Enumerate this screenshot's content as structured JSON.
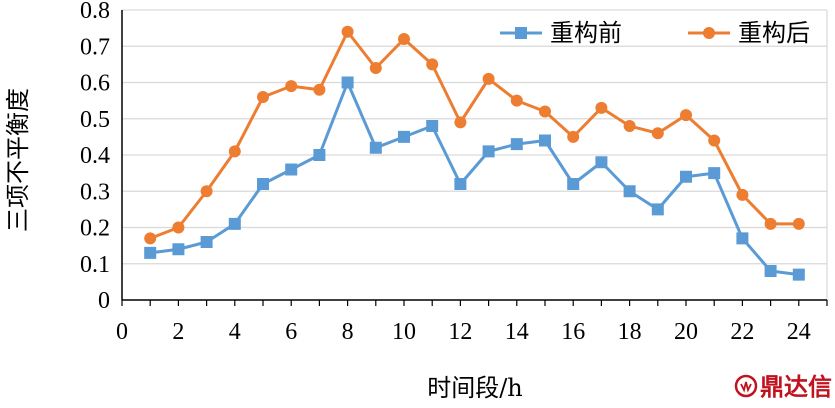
{
  "chart_data": {
    "type": "line",
    "title": "",
    "xlabel": "时间段/h",
    "ylabel": "三项不平衡度",
    "xlim": [
      0,
      25
    ],
    "ylim": [
      0,
      0.8
    ],
    "x_ticks": [
      0,
      2,
      4,
      6,
      8,
      10,
      12,
      14,
      16,
      18,
      20,
      22,
      24
    ],
    "y_ticks": [
      0,
      0.1,
      0.2,
      0.3,
      0.4,
      0.5,
      0.6,
      0.7,
      0.8
    ],
    "y_tick_labels": [
      "0",
      "0.1",
      "0.2",
      "0.3",
      "0.4",
      "0.5",
      "0.6",
      "0.7",
      "0.8"
    ],
    "grid": "horizontal",
    "legend_position": "top-right",
    "x": [
      1,
      2,
      3,
      4,
      5,
      6,
      7,
      8,
      9,
      10,
      11,
      12,
      13,
      14,
      15,
      16,
      17,
      18,
      19,
      20,
      21,
      22,
      23,
      24
    ],
    "series": [
      {
        "name": "重构前",
        "color": "#5b9bd5",
        "marker": "square",
        "values": [
          0.13,
          0.14,
          0.16,
          0.21,
          0.32,
          0.36,
          0.4,
          0.6,
          0.42,
          0.45,
          0.48,
          0.32,
          0.41,
          0.43,
          0.44,
          0.32,
          0.38,
          0.3,
          0.25,
          0.34,
          0.35,
          0.17,
          0.08,
          0.07
        ]
      },
      {
        "name": "重构后",
        "color": "#ed7d31",
        "marker": "circle",
        "values": [
          0.17,
          0.2,
          0.3,
          0.41,
          0.56,
          0.59,
          0.58,
          0.74,
          0.64,
          0.72,
          0.65,
          0.49,
          0.61,
          0.55,
          0.52,
          0.45,
          0.53,
          0.48,
          0.46,
          0.51,
          0.44,
          0.29,
          0.21,
          0.21
        ]
      }
    ]
  },
  "watermark": {
    "text": "鼎达信",
    "color": "#c1121f"
  }
}
